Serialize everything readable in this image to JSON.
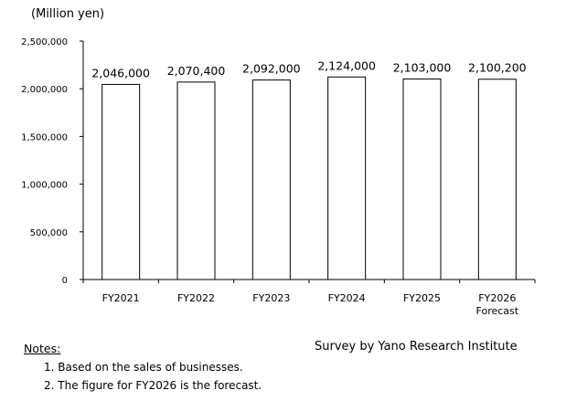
{
  "chart_data": {
    "type": "bar",
    "unit_label": "(Million yen)",
    "categories": [
      [
        "FY2021"
      ],
      [
        "FY2022"
      ],
      [
        "FY2023"
      ],
      [
        "FY2024"
      ],
      [
        "FY2025"
      ],
      [
        "FY2026",
        "Forecast"
      ]
    ],
    "values": [
      2046000,
      2070400,
      2092000,
      2124000,
      2103000,
      2100200
    ],
    "value_labels": [
      "2,046,000",
      "2,070,400",
      "2,092,000",
      "2,124,000",
      "2,103,000",
      "2,100,200"
    ],
    "y_ticks": [
      0,
      500000,
      1000000,
      1500000,
      2000000,
      2500000
    ],
    "y_tick_labels": [
      "0",
      "500,000",
      "1,000,000",
      "1,500,000",
      "2,000,000",
      "2,500,000"
    ],
    "ylim": [
      0,
      2500000
    ],
    "grid": false,
    "bar_fill": "#ffffff",
    "bar_stroke": "#000000"
  },
  "notes": {
    "title": "Notes:",
    "items": [
      "1. Based on the sales of businesses.",
      "2. The figure for FY2026 is the forecast."
    ]
  },
  "source": "Survey by Yano Research Institute"
}
